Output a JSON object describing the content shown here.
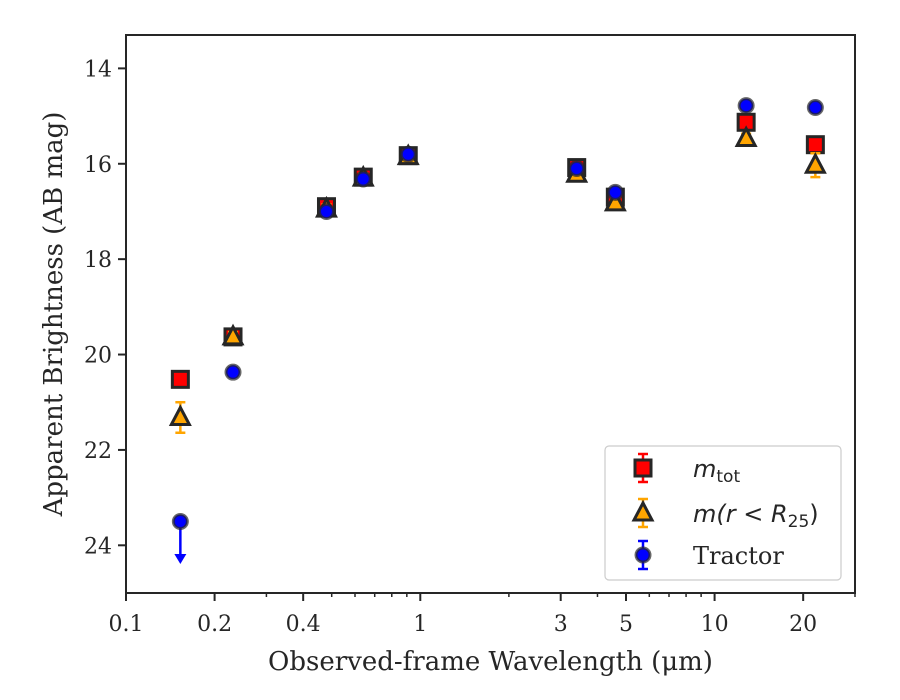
{
  "chart_data": {
    "type": "scatter",
    "title": "",
    "xlabel": "Observed-frame Wavelength (μm)",
    "ylabel": "Apparent Brightness (AB mag)",
    "x_scale": "log",
    "xlim": [
      0.1,
      30
    ],
    "ylim": [
      25,
      13.3
    ],
    "y_inverted": true,
    "x_tick_labels": [
      "0.1",
      "0.2",
      "0.4",
      "1",
      "3",
      "5",
      "10",
      "20"
    ],
    "x_tick_values": [
      0.1,
      0.2,
      0.4,
      1,
      3,
      5,
      10,
      20
    ],
    "y_tick_values": [
      14,
      16,
      18,
      20,
      22,
      24
    ],
    "y_tick_labels": [
      "14",
      "16",
      "18",
      "20",
      "22",
      "24"
    ],
    "grid": false,
    "legend_position": "bottom-right",
    "series": [
      {
        "name": "m_tot",
        "legend_main": "m",
        "legend_sub": "tot",
        "marker": "square",
        "color": "#ff0000",
        "edge_color": "#262626",
        "points": [
          {
            "x": 0.153,
            "y": 20.52,
            "err": 0.1
          },
          {
            "x": 0.231,
            "y": 19.63,
            "err": 0.1
          },
          {
            "x": 0.48,
            "y": 16.9,
            "err": 0.1
          },
          {
            "x": 0.64,
            "y": 16.28,
            "err": 0.1
          },
          {
            "x": 0.91,
            "y": 15.83,
            "err": 0.1
          },
          {
            "x": 3.4,
            "y": 16.08,
            "err": 0.1
          },
          {
            "x": 4.6,
            "y": 16.7,
            "err": 0.1
          },
          {
            "x": 12.8,
            "y": 15.13,
            "err": 0.1
          },
          {
            "x": 22.0,
            "y": 15.6,
            "err": 0.1
          }
        ]
      },
      {
        "name": "m(r<R_25)",
        "legend_main": "m(r < R",
        "legend_sub": "25",
        "legend_end": ")",
        "marker": "triangle",
        "color": "#ffa500",
        "edge_color": "#262626",
        "points": [
          {
            "x": 0.153,
            "y": 21.32,
            "err": 0.32
          },
          {
            "x": 0.231,
            "y": 19.63,
            "err": 0.1
          },
          {
            "x": 0.48,
            "y": 16.95,
            "err": 0.1
          },
          {
            "x": 0.64,
            "y": 16.3,
            "err": 0.1
          },
          {
            "x": 0.91,
            "y": 15.85,
            "err": 0.1
          },
          {
            "x": 3.4,
            "y": 16.22,
            "err": 0.1
          },
          {
            "x": 4.6,
            "y": 16.82,
            "err": 0.1
          },
          {
            "x": 12.8,
            "y": 15.47,
            "err": 0.1
          },
          {
            "x": 22.0,
            "y": 16.03,
            "err": 0.25
          }
        ]
      },
      {
        "name": "Tractor",
        "legend_main": "Tractor",
        "marker": "circle",
        "color": "#0000ff",
        "edge_color": "#262626",
        "points": [
          {
            "x": 0.153,
            "y": 23.5,
            "upper_limit": true
          },
          {
            "x": 0.231,
            "y": 20.37
          },
          {
            "x": 0.48,
            "y": 17.0
          },
          {
            "x": 0.64,
            "y": 16.32
          },
          {
            "x": 0.91,
            "y": 15.8
          },
          {
            "x": 3.4,
            "y": 16.1
          },
          {
            "x": 4.6,
            "y": 16.6
          },
          {
            "x": 12.8,
            "y": 14.78
          },
          {
            "x": 22.0,
            "y": 14.82
          }
        ]
      }
    ]
  }
}
